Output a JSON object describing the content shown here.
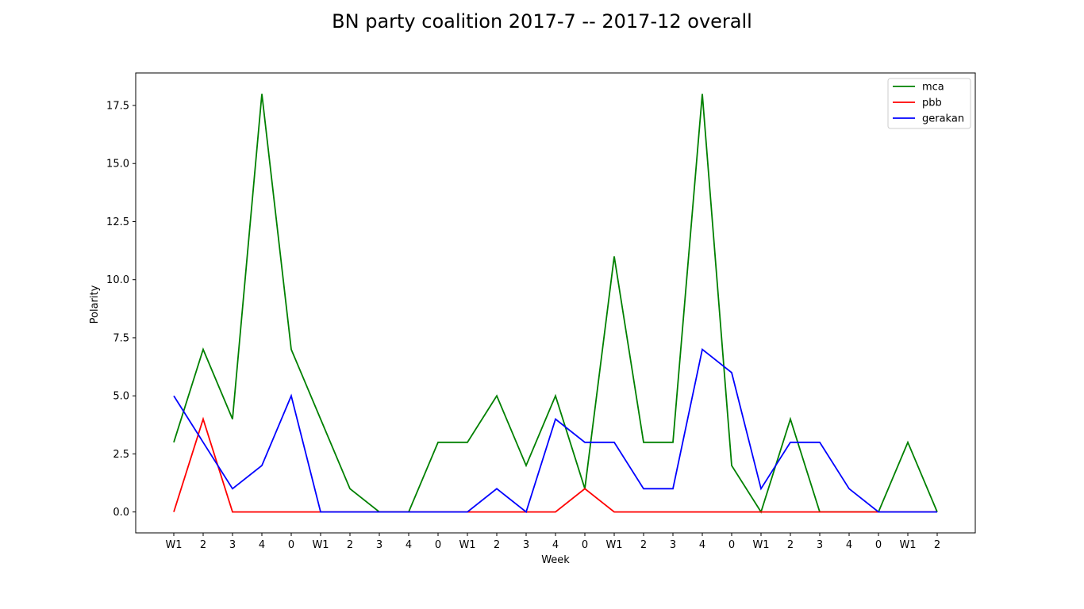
{
  "chart_data": {
    "type": "line",
    "title": "BN party coalition 2017-7 -- 2017-12 overall",
    "xlabel": "Week",
    "ylabel": "Polarity",
    "categories": [
      "W1",
      "2",
      "3",
      "4",
      "0",
      "W1",
      "2",
      "3",
      "4",
      "0",
      "W1",
      "2",
      "3",
      "4",
      "0",
      "W1",
      "2",
      "3",
      "4",
      "0",
      "W1",
      "2",
      "3",
      "4",
      "0",
      "W1",
      "2"
    ],
    "yticks": [
      "0.0",
      "2.5",
      "5.0",
      "7.5",
      "10.0",
      "12.5",
      "15.0",
      "17.5"
    ],
    "ylim": [
      -0.9,
      18.9
    ],
    "grid": false,
    "legend_position": "top-right",
    "series": [
      {
        "name": "mca",
        "color": "#008000",
        "values": [
          3,
          7,
          4,
          18,
          7,
          4,
          1,
          0,
          0,
          3,
          3,
          5,
          2,
          5,
          1,
          11,
          3,
          3,
          18,
          2,
          0,
          4,
          0,
          0,
          0,
          3,
          0
        ]
      },
      {
        "name": "pbb",
        "color": "#ff0000",
        "values": [
          0,
          4,
          0,
          0,
          0,
          0,
          0,
          0,
          0,
          0,
          0,
          0,
          0,
          0,
          1,
          0,
          0,
          0,
          0,
          0,
          0,
          0,
          0,
          0,
          0,
          0,
          0
        ]
      },
      {
        "name": "gerakan",
        "color": "#0000ff",
        "values": [
          5,
          3,
          1,
          2,
          5,
          0,
          0,
          0,
          0,
          0,
          0,
          1,
          0,
          4,
          3,
          3,
          1,
          1,
          7,
          6,
          1,
          3,
          3,
          1,
          0,
          0,
          0
        ]
      }
    ]
  }
}
